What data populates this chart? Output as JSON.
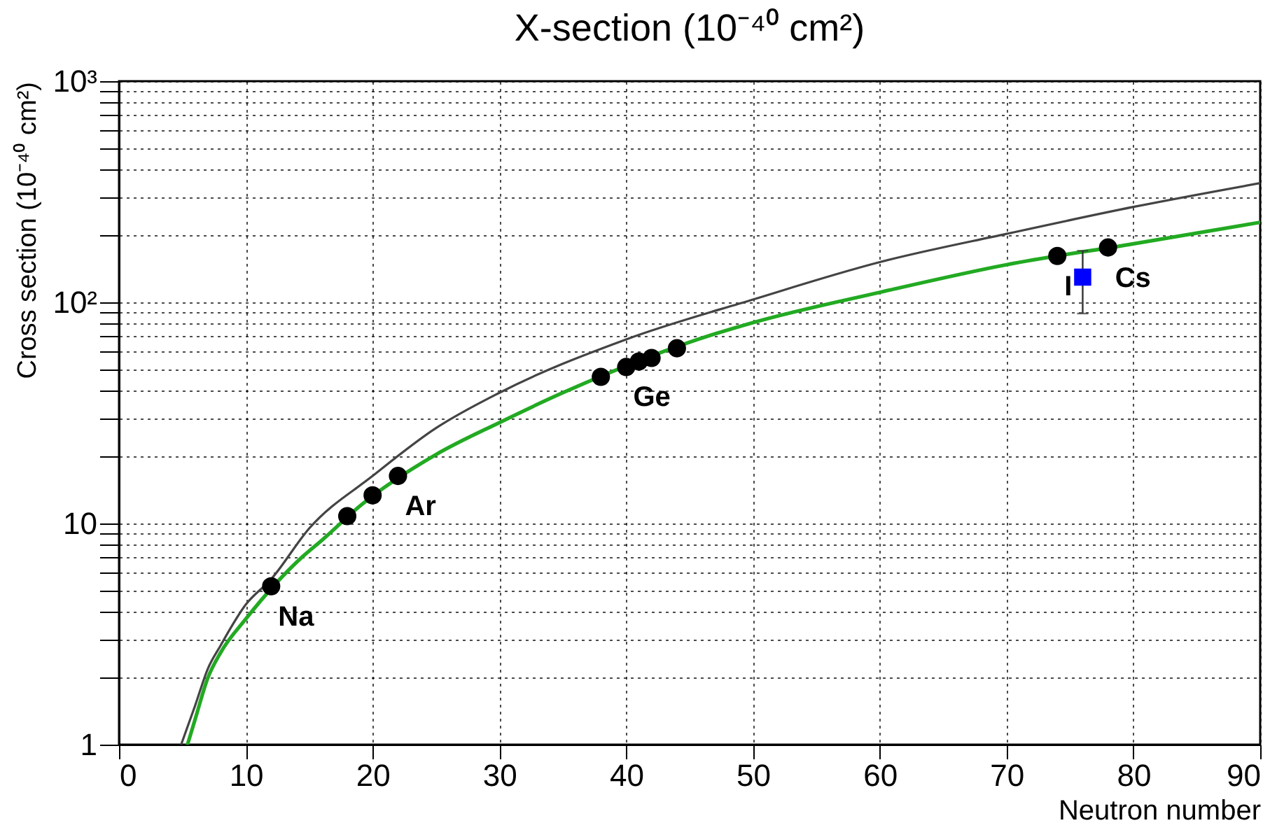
{
  "chart_data": {
    "type": "scatter",
    "title": "X-section (10⁻⁴⁰ cm²)",
    "xlabel": "Neutron number",
    "ylabel": "Cross section (10⁻⁴⁰ cm²)",
    "xlim": [
      0,
      90
    ],
    "xticks": [
      0,
      10,
      20,
      30,
      40,
      50,
      60,
      70,
      80,
      90
    ],
    "ylim": [
      1,
      1000
    ],
    "log": "y",
    "yticks": [
      1,
      {
        "value": 2,
        "label": null
      },
      {
        "value": 3,
        "label": null
      },
      {
        "value": 4,
        "label": null
      },
      {
        "value": 5,
        "label": null
      },
      {
        "value": 6,
        "label": null
      },
      {
        "value": 7,
        "label": null
      },
      {
        "value": 8,
        "label": null
      },
      {
        "value": 9,
        "label": null
      },
      10,
      {
        "value": 20,
        "label": null
      },
      {
        "value": 30,
        "label": null
      },
      {
        "value": 40,
        "label": null
      },
      {
        "value": 50,
        "label": null
      },
      {
        "value": 60,
        "label": null
      },
      {
        "value": 70,
        "label": null
      },
      {
        "value": 80,
        "label": null
      },
      {
        "value": 90,
        "label": null
      },
      {
        "value": 100,
        "label": "10²"
      },
      {
        "value": 200,
        "label": null
      },
      {
        "value": 300,
        "label": null
      },
      {
        "value": 400,
        "label": null
      },
      {
        "value": 500,
        "label": null
      },
      {
        "value": 600,
        "label": null
      },
      {
        "value": 700,
        "label": null
      },
      {
        "value": 800,
        "label": null
      },
      {
        "value": 900,
        "label": null
      },
      {
        "value": 1000,
        "label": "10³"
      }
    ],
    "grid": true,
    "series": [
      {
        "type": "line",
        "marker": "none",
        "line_style": "solid",
        "color": "#444444",
        "x": [
          4.9,
          6,
          7,
          8,
          10,
          12,
          15,
          20,
          25,
          30,
          40,
          50,
          60,
          70,
          80,
          90
        ],
        "values": [
          1,
          1.5,
          2.2,
          2.8,
          4.3,
          5.6,
          9.5,
          16.4,
          27,
          39,
          68,
          103,
          152,
          204,
          270,
          346
        ]
      },
      {
        "type": "line",
        "marker": "none",
        "line_style": "solid",
        "color": "#22aa22",
        "x": [
          5.4,
          6,
          7,
          8,
          10,
          14.5,
          16,
          19,
          25,
          30,
          35,
          47,
          50,
          60,
          70,
          80,
          90
        ],
        "values": [
          1,
          1.3,
          2.0,
          2.6,
          3.7,
          7.1,
          8.4,
          12.0,
          20.5,
          28.6,
          39,
          72,
          81,
          111,
          148,
          184,
          230
        ]
      },
      {
        "marker": "circle",
        "color": "#000000",
        "x": [
          12,
          18,
          20,
          22,
          38,
          40,
          41,
          42,
          44,
          74,
          78
        ],
        "values": [
          5.2,
          10.8,
          13.4,
          16.4,
          46,
          51,
          54,
          56,
          62,
          162,
          177
        ]
      },
      {
        "marker": "square",
        "color": "#0000ff",
        "x": [
          76
        ],
        "values": [
          130
        ],
        "errors": [
          [
            89,
            171
          ]
        ]
      }
    ],
    "annotations": [
      {
        "text": "Na",
        "x": 12,
        "y": 5.2
      },
      {
        "text": "Ar",
        "x": 22,
        "y": 16.4
      },
      {
        "text": "Ge",
        "x": 40,
        "y": 51
      },
      {
        "text": "I",
        "x": 74,
        "y": 162
      },
      {
        "text": "Cs",
        "x": 78,
        "y": 177
      }
    ]
  }
}
